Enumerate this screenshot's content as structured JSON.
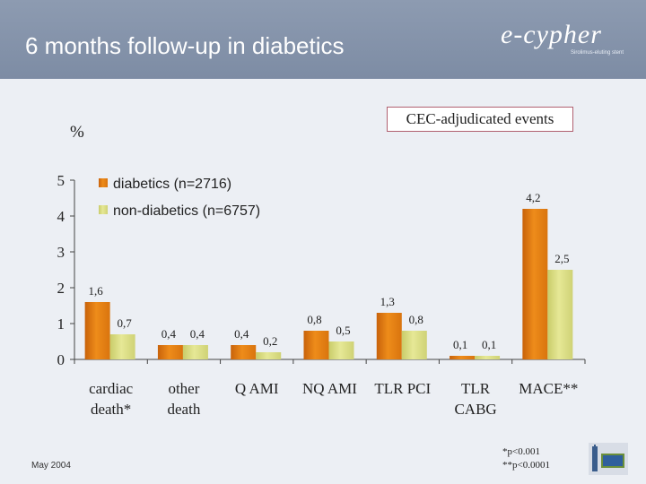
{
  "header": {
    "title": "6 months follow-up in diabetics"
  },
  "logo": {
    "text": "e-cypher",
    "tagline": "Sirolimus-eluting stent"
  },
  "annotation": {
    "box": "CEC-adjudicated events",
    "unit": "%"
  },
  "footer": {
    "date": "May 2004",
    "footnote_1": "*p<0.001",
    "footnote_2": "**p<0.0001"
  },
  "colors": {
    "diabetics": "#ee8c1a",
    "non_diabetics": "#e6e896"
  },
  "chart_data": {
    "type": "bar",
    "categories": [
      [
        "cardiac",
        "death*"
      ],
      [
        "other",
        "death"
      ],
      [
        "Q AMI"
      ],
      [
        "NQ AMI"
      ],
      [
        "TLR PCI"
      ],
      [
        "TLR",
        "CABG"
      ],
      [
        "MACE**"
      ]
    ],
    "series": [
      {
        "name": "diabetics (n=2716)",
        "values": [
          1.6,
          0.4,
          0.4,
          0.8,
          1.3,
          0.1,
          4.2
        ],
        "labels": [
          "1,6",
          "0,4",
          "0,4",
          "0,8",
          "1,3",
          "0,1",
          "4,2"
        ]
      },
      {
        "name": "non-diabetics (n=6757)",
        "values": [
          0.7,
          0.4,
          0.2,
          0.5,
          0.8,
          0.1,
          2.5
        ],
        "labels": [
          "0,7",
          "0,4",
          "0,2",
          "0,5",
          "0,8",
          "0,1",
          "2,5"
        ]
      }
    ],
    "yticks": [
      "0",
      "1",
      "2",
      "3",
      "4",
      "5"
    ],
    "ylim": [
      0,
      5
    ],
    "legend_position": "top-left",
    "grid": false
  }
}
